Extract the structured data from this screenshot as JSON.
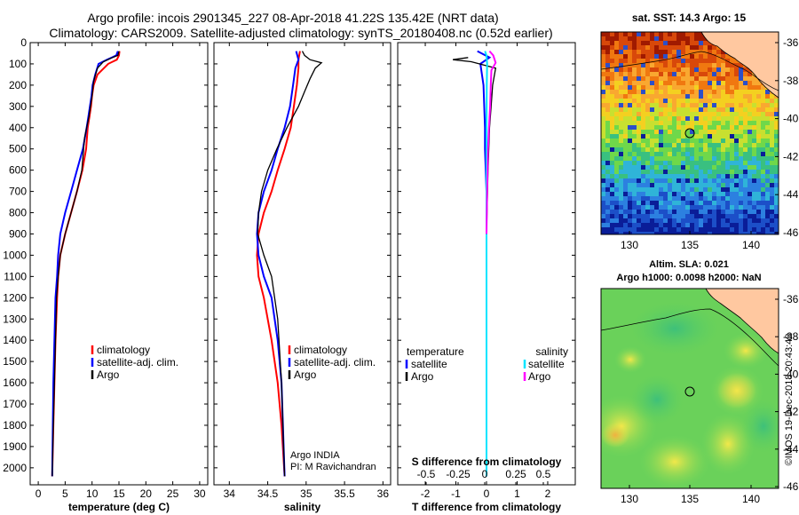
{
  "header": {
    "title_line1": "Argo profile: incois 2901345_227 08-Apr-2018 41.22S 135.42E (NRT data)",
    "title_line2": "Climatology: CARS2009. Satellite-adjusted climatology: synTS_20180408.nc (0.52d earlier)"
  },
  "colors": {
    "climatology": "#ff0000",
    "satellite": "#0000ff",
    "argo": "#000000",
    "satellite_salinity": "#00e5ff",
    "argo_salinity": "#ff00ff"
  },
  "depth_axis": {
    "ticks": [
      0,
      100,
      200,
      300,
      400,
      500,
      600,
      700,
      800,
      900,
      1000,
      1100,
      1200,
      1300,
      1400,
      1500,
      1600,
      1700,
      1800,
      1900,
      2000
    ],
    "ylim": [
      0,
      2080
    ]
  },
  "chart_data": [
    {
      "id": "temperature",
      "type": "line",
      "xlabel": "temperature (deg C)",
      "xlim": [
        -1.5,
        31.5
      ],
      "xticks": [
        0,
        5,
        10,
        15,
        20,
        25,
        30
      ],
      "legend": [
        "climatology",
        "satellite-adj. clim.",
        "Argo"
      ],
      "series": [
        {
          "name": "climatology",
          "color": "#ff0000",
          "x": [
            15.1,
            15.0,
            14.6,
            13.0,
            11.0,
            10.3,
            10.0,
            9.8,
            9.5,
            9.2,
            8.9,
            8.2,
            7.2,
            6.1,
            5.0,
            4.1,
            3.7,
            3.5,
            3.2,
            3.0,
            2.8,
            2.6
          ],
          "y": [
            40,
            60,
            80,
            100,
            150,
            200,
            250,
            300,
            350,
            400,
            500,
            600,
            700,
            800,
            900,
            1000,
            1100,
            1200,
            1400,
            1600,
            1800,
            2040
          ]
        },
        {
          "name": "satellite-adj. clim.",
          "color": "#0000ff",
          "x": [
            14.8,
            14.5,
            12.8,
            11.2,
            10.6,
            10.1,
            9.9,
            9.6,
            9.3,
            9.0,
            8.3,
            7.2,
            6.1,
            5.0,
            4.1,
            3.7,
            3.5,
            3.2,
            3.0,
            2.8,
            2.6
          ],
          "y": [
            40,
            60,
            80,
            100,
            150,
            200,
            250,
            300,
            350,
            400,
            500,
            600,
            700,
            800,
            900,
            1000,
            1100,
            1200,
            1400,
            1600,
            2040
          ]
        },
        {
          "name": "Argo",
          "color": "#000000",
          "x": [
            15.0,
            14.8,
            13.8,
            12.1,
            11.0,
            10.3,
            10.0,
            9.7,
            9.4,
            9.0,
            8.6,
            8.1,
            7.2,
            6.1,
            5.0,
            4.1,
            3.7,
            3.4,
            3.2,
            3.0,
            2.8,
            2.6
          ],
          "y": [
            40,
            60,
            70,
            90,
            120,
            180,
            250,
            300,
            350,
            400,
            450,
            600,
            700,
            800,
            900,
            1000,
            1100,
            1200,
            1400,
            1600,
            1800,
            2040
          ]
        }
      ]
    },
    {
      "id": "salinity",
      "type": "line",
      "xlabel": "salinity",
      "xlim": [
        33.8,
        36.1
      ],
      "xticks": [
        34,
        34.5,
        35,
        35.5,
        36
      ],
      "legend": [
        "climatology",
        "satellite-adj. clim.",
        "Argo"
      ],
      "annotation": [
        "Argo INDIA",
        "PI: M Ravichandran"
      ],
      "series": [
        {
          "name": "climatology",
          "color": "#ff0000",
          "x": [
            34.92,
            34.9,
            34.9,
            34.88,
            34.84,
            34.8,
            34.72,
            34.63,
            34.55,
            34.45,
            34.38,
            34.36,
            34.38,
            34.45,
            34.55,
            34.63,
            34.68,
            34.72
          ],
          "y": [
            40,
            80,
            120,
            200,
            300,
            400,
            500,
            600,
            700,
            800,
            900,
            1000,
            1100,
            1200,
            1400,
            1600,
            1800,
            2040
          ]
        },
        {
          "name": "satellite-adj. clim.",
          "color": "#0000ff",
          "x": [
            34.87,
            34.9,
            34.86,
            34.83,
            34.79,
            34.72,
            34.63,
            34.55,
            34.45,
            34.38,
            34.36,
            34.38,
            34.45,
            34.55,
            34.63,
            34.68,
            34.72
          ],
          "y": [
            40,
            80,
            120,
            200,
            300,
            400,
            500,
            600,
            700,
            800,
            900,
            1000,
            1100,
            1200,
            1400,
            1600,
            2040
          ]
        },
        {
          "name": "Argo",
          "color": "#000000",
          "x": [
            34.95,
            34.98,
            35.05,
            35.2,
            35.12,
            35.05,
            34.98,
            34.9,
            34.75,
            34.62,
            34.5,
            34.42,
            34.38,
            34.37,
            34.45,
            34.55,
            34.63,
            34.68,
            34.72
          ],
          "y": [
            40,
            60,
            80,
            95,
            120,
            170,
            230,
            300,
            400,
            500,
            600,
            700,
            800,
            900,
            1000,
            1100,
            1300,
            1600,
            2040
          ]
        }
      ]
    },
    {
      "id": "difference",
      "type": "line",
      "xlabel": "T difference from climatology",
      "xlabel_top": "S difference from climatology",
      "xlim": [
        -2.9,
        2.9
      ],
      "xticks": [
        -2,
        -1,
        0,
        1,
        2
      ],
      "xticks_top": [
        "-0.5",
        "-0.25",
        "0",
        "0.25",
        "0.5"
      ],
      "legend_left_title": "temperature",
      "legend_right_title": "salinity",
      "legend_left": [
        "satellite",
        "Argo"
      ],
      "legend_right": [
        "satellite",
        "Argo"
      ],
      "series": [
        {
          "name": "T satellite",
          "color": "#0000ff",
          "x": [
            -0.3,
            0.1,
            -0.2,
            -0.1,
            -0.05,
            -0.05,
            0.0,
            0.0,
            0.0,
            0.0,
            0.0
          ],
          "y": [
            40,
            70,
            100,
            200,
            400,
            500,
            700,
            900,
            1200,
            1600,
            2040
          ]
        },
        {
          "name": "T Argo",
          "color": "#000000",
          "x": [
            -0.6,
            -1.1,
            -0.5,
            0.3,
            0.2,
            0.15,
            0.1,
            0.05,
            0.0,
            0.0,
            0.0
          ],
          "y": [
            70,
            80,
            90,
            120,
            200,
            300,
            400,
            600,
            900,
            1200,
            1400
          ]
        },
        {
          "name": "S satellite",
          "color": "#00e5ff",
          "x": [
            -0.05,
            0.0,
            0.02,
            0.01,
            0.0,
            0.0,
            0.0,
            0.0,
            0.0
          ],
          "y": [
            40,
            60,
            100,
            200,
            400,
            700,
            1000,
            1500,
            2040
          ]
        },
        {
          "name": "S Argo",
          "color": "#ff00ff",
          "x": [
            0.1,
            0.22,
            0.3,
            0.16,
            0.14,
            0.12,
            0.08,
            0.05,
            0.02,
            0.0
          ],
          "y": [
            40,
            60,
            95,
            130,
            200,
            300,
            400,
            500,
            700,
            900
          ]
        }
      ]
    }
  ],
  "maps": {
    "sst": {
      "title": "sat. SST: 14.3 Argo: 15",
      "xticks": [
        "130",
        "135",
        "140"
      ],
      "yticks": [
        "-36",
        "-38",
        "-40",
        "-42",
        "-44",
        "-46"
      ],
      "marker": {
        "lon": 135.42,
        "lat": -41.22
      }
    },
    "sla": {
      "title_line1": "Altim. SLA: 0.021",
      "title_line2": "Argo h1000: 0.0098 h2000: NaN",
      "xticks": [
        "130",
        "135",
        "140"
      ],
      "yticks": [
        "-36",
        "-38",
        "-40",
        "-42",
        "-44",
        "-46"
      ],
      "marker": {
        "lon": 135.42,
        "lat": -41.22
      }
    }
  },
  "credit": "©IMOS 19-Dec-2018 20:43:48"
}
